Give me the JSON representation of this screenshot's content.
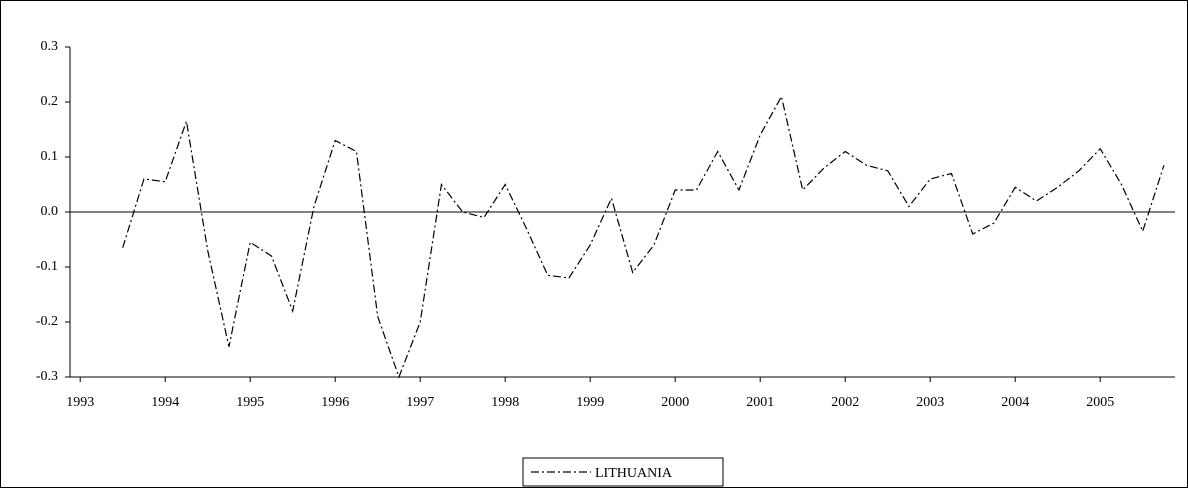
{
  "chart_data": {
    "type": "line",
    "x": [
      1993.5,
      1993.75,
      1994.0,
      1994.25,
      1994.5,
      1994.75,
      1995.0,
      1995.25,
      1995.5,
      1995.75,
      1996.0,
      1996.25,
      1996.5,
      1996.75,
      1997.0,
      1997.25,
      1997.5,
      1997.75,
      1998.0,
      1998.25,
      1998.5,
      1998.75,
      1999.0,
      1999.25,
      1999.5,
      1999.75,
      2000.0,
      2000.25,
      2000.5,
      2000.75,
      2001.0,
      2001.25,
      2001.5,
      2001.75,
      2002.0,
      2002.25,
      2002.5,
      2002.75,
      2003.0,
      2003.25,
      2003.5,
      2003.75,
      2004.0,
      2004.25,
      2004.5,
      2004.75,
      2005.0,
      2005.25,
      2005.5,
      2005.75
    ],
    "series": [
      {
        "name": "LITHUANIA",
        "color": "#000000",
        "values": [
          -0.065,
          0.06,
          0.055,
          0.165,
          -0.07,
          -0.245,
          -0.055,
          -0.08,
          -0.18,
          0.01,
          0.13,
          0.11,
          -0.19,
          -0.3,
          -0.2,
          0.05,
          0.0,
          -0.01,
          0.05,
          -0.03,
          -0.115,
          -0.12,
          -0.06,
          0.025,
          -0.11,
          -0.06,
          0.04,
          0.04,
          0.11,
          0.04,
          0.14,
          0.21,
          0.04,
          0.08,
          0.11,
          0.085,
          0.075,
          0.01,
          0.06,
          0.07,
          -0.04,
          -0.02,
          0.045,
          0.02,
          0.045,
          0.075,
          0.115,
          0.05,
          -0.035,
          0.085
        ]
      }
    ],
    "xlim": [
      1992.88,
      2005.88
    ],
    "xticks": [
      1993,
      1994,
      1995,
      1996,
      1997,
      1998,
      1999,
      2000,
      2001,
      2002,
      2003,
      2004,
      2005
    ],
    "ylim": [
      -0.3,
      0.3
    ],
    "yticks": [
      {
        "value": -0.3,
        "label": "-0.3"
      },
      {
        "value": -0.2,
        "label": "-0.2"
      },
      {
        "value": -0.1,
        "label": "-0.1"
      },
      {
        "value": 0,
        "label": "0.0"
      },
      {
        "value": 0.1,
        "label": "0.1"
      },
      {
        "value": 0.2,
        "label": "0.2"
      },
      {
        "value": 0.3,
        "label": "0.3"
      }
    ],
    "legend": "bottom"
  }
}
